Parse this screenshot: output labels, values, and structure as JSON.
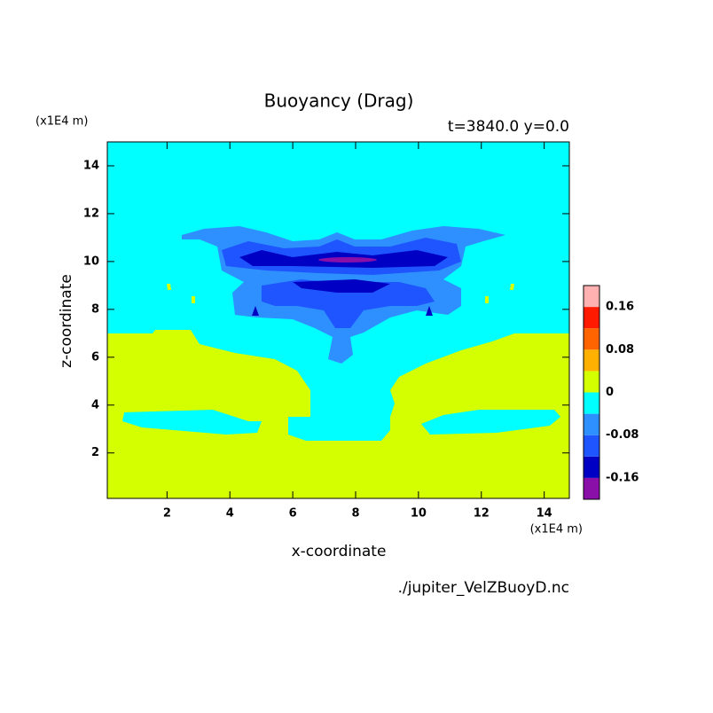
{
  "chart_data": {
    "type": "contour",
    "title": "Buoyancy (Drag)",
    "subtitle": "t=3840.0 y=0.0",
    "x_label": "x-coordinate",
    "y_label": "z-coordinate",
    "x_unit": "(x1E4 m)",
    "y_unit": "(x1E4 m)",
    "source": "./jupiter_VelZBuoyD.nc",
    "xlim": [
      0.1,
      14.8
    ],
    "ylim": [
      0.1,
      15
    ],
    "xticks": [
      2,
      4,
      6,
      8,
      10,
      12,
      14
    ],
    "yticks": [
      2,
      4,
      6,
      8,
      10,
      12,
      14
    ],
    "levels": [
      -0.2,
      -0.16,
      -0.12,
      -0.08,
      -0.04,
      0,
      0.04,
      0.08,
      0.12,
      0.16,
      0.2
    ],
    "colors": [
      "#8a0fa8",
      "#0000c4",
      "#1e55ff",
      "#2e90ff",
      "#00ffff",
      "#d4ff00",
      "#ffb000",
      "#ff6400",
      "#ff1a00",
      "#ffb0b0"
    ],
    "colorbar_ticks": [
      -0.16,
      -0.08,
      0,
      0.08,
      0.16
    ]
  }
}
